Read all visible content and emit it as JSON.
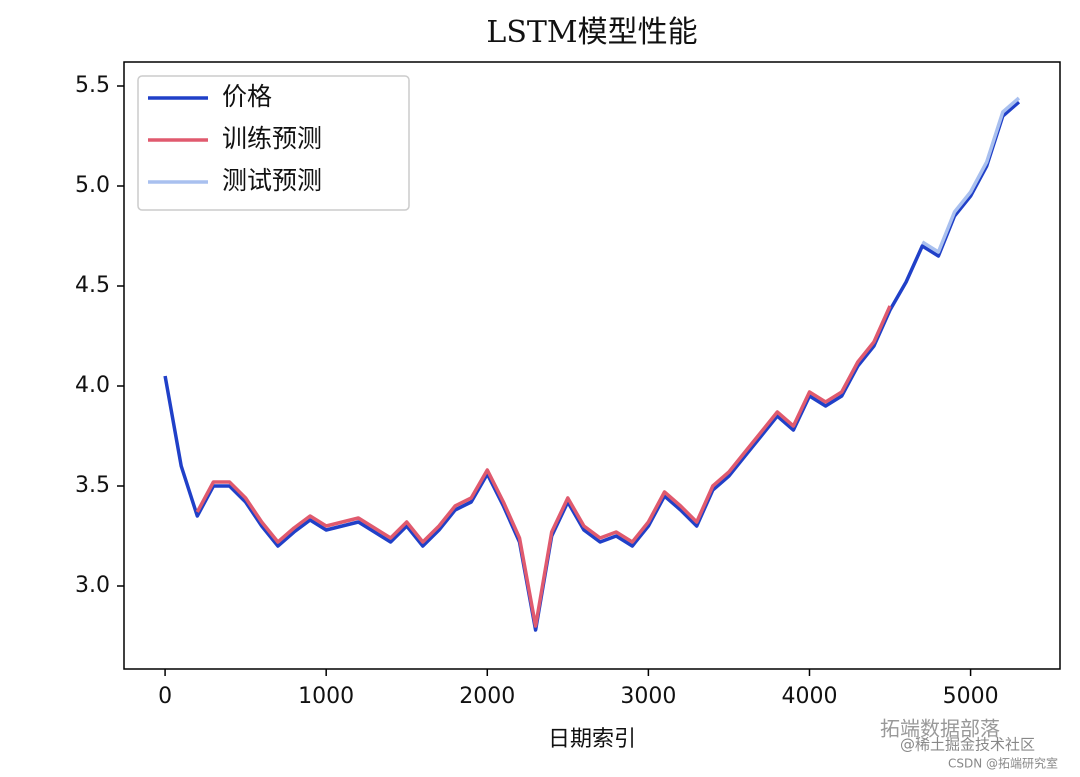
{
  "chart_data": {
    "type": "line",
    "title": "LSTM模型性能",
    "x_label": "日期索引",
    "x": [
      0,
      100,
      200,
      300,
      400,
      500,
      600,
      700,
      800,
      900,
      1000,
      1100,
      1200,
      1300,
      1400,
      1500,
      1600,
      1700,
      1800,
      1900,
      2000,
      2100,
      2200,
      2300,
      2400,
      2500,
      2600,
      2700,
      2800,
      2900,
      3000,
      3100,
      3200,
      3300,
      3400,
      3500,
      3600,
      3700,
      3800,
      3900,
      4000,
      4100,
      4200,
      4300,
      4400,
      4500,
      4600,
      4700,
      4800,
      4900,
      5000,
      5100,
      5200,
      5300
    ],
    "series": [
      {
        "name": "价格",
        "color": "#2040c8",
        "values": [
          4.05,
          3.6,
          3.35,
          3.5,
          3.5,
          3.42,
          3.3,
          3.2,
          3.27,
          3.33,
          3.28,
          3.3,
          3.32,
          3.27,
          3.22,
          3.3,
          3.2,
          3.28,
          3.38,
          3.42,
          3.56,
          3.4,
          3.22,
          2.78,
          3.25,
          3.42,
          3.28,
          3.22,
          3.25,
          3.2,
          3.3,
          3.45,
          3.38,
          3.3,
          3.48,
          3.55,
          3.65,
          3.75,
          3.85,
          3.78,
          3.95,
          3.9,
          3.95,
          4.1,
          4.2,
          4.38,
          4.52,
          4.7,
          4.65,
          4.85,
          4.95,
          5.1,
          5.35,
          5.42
        ]
      },
      {
        "name": "训练预测",
        "color": "#e05a6e",
        "values": [
          null,
          null,
          3.37,
          3.52,
          3.52,
          3.44,
          3.32,
          3.22,
          3.29,
          3.35,
          3.3,
          3.32,
          3.34,
          3.29,
          3.24,
          3.32,
          3.22,
          3.3,
          3.4,
          3.44,
          3.58,
          3.42,
          3.24,
          2.8,
          3.27,
          3.44,
          3.3,
          3.24,
          3.27,
          3.22,
          3.32,
          3.47,
          3.4,
          3.32,
          3.5,
          3.57,
          3.67,
          3.77,
          3.87,
          3.8,
          3.97,
          3.92,
          3.97,
          4.12,
          4.22,
          4.4,
          null,
          null,
          null,
          null,
          null,
          null,
          null,
          null
        ]
      },
      {
        "name": "测试预测",
        "color": "#a9c0ef",
        "values": [
          null,
          null,
          null,
          null,
          null,
          null,
          null,
          null,
          null,
          null,
          null,
          null,
          null,
          null,
          null,
          null,
          null,
          null,
          null,
          null,
          null,
          null,
          null,
          null,
          null,
          null,
          null,
          null,
          null,
          null,
          null,
          null,
          null,
          null,
          null,
          null,
          null,
          null,
          null,
          null,
          null,
          null,
          null,
          null,
          null,
          null,
          null,
          4.72,
          4.67,
          4.87,
          4.97,
          5.12,
          5.37,
          5.44
        ]
      }
    ],
    "xlim": [
      -255,
      5555
    ],
    "xticks": [
      0,
      1000,
      2000,
      3000,
      4000,
      5000
    ],
    "ylim": [
      2.585,
      5.62
    ],
    "yticks": [
      {
        "value": 3,
        "label": "3.0"
      },
      3.5,
      {
        "value": 4,
        "label": "4.0"
      },
      4.5,
      {
        "value": 5,
        "label": "5.0"
      },
      5.5
    ],
    "legend": "upper left",
    "grid": false,
    "annotations": [
      "拓端数据部落",
      "@稀土掘金技术社区",
      "CSDN @拓端研究室"
    ]
  }
}
